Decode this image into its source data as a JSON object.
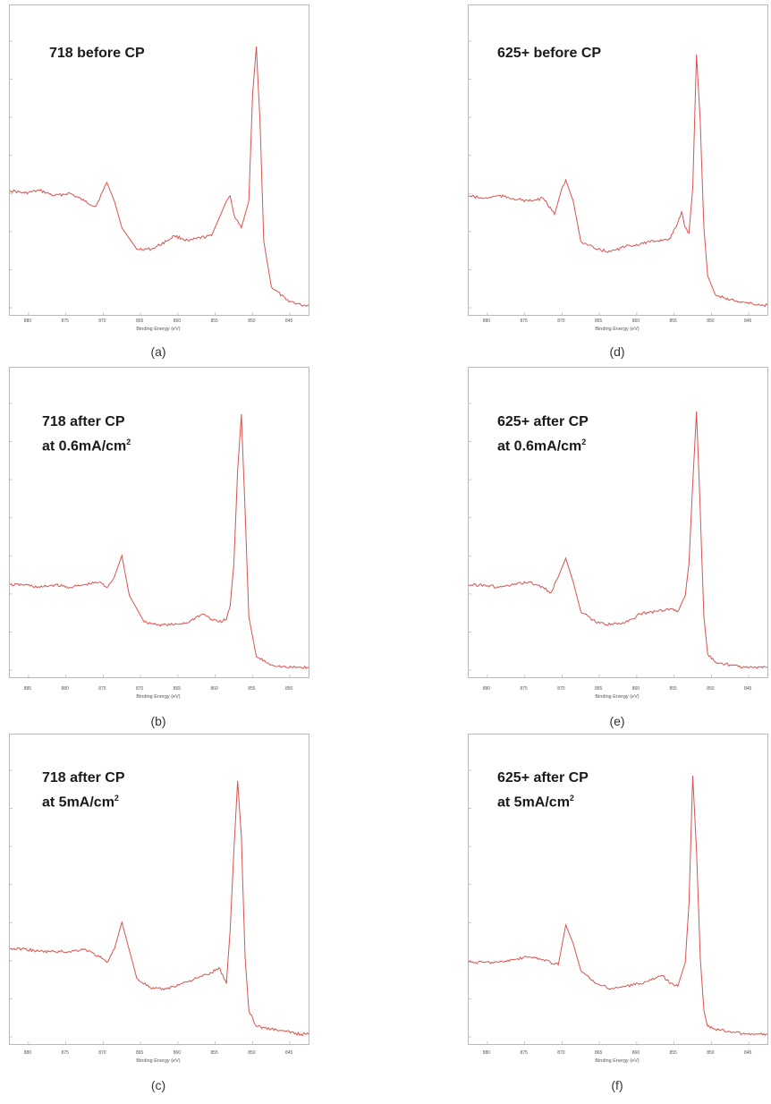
{
  "colors": {
    "trace": "#d9534f",
    "frame": "#b9b9b9"
  },
  "panels": [
    {
      "id": "a",
      "caption": "(a)",
      "title_line1": "718 before CP",
      "title_line2": "",
      "title_unit_sup": "",
      "xlabel": "Binding Energy (eV)",
      "tick_labels": [
        "880",
        "875",
        "870",
        "865",
        "860",
        "855",
        "850",
        "845"
      ],
      "chart_data": {
        "type": "line",
        "xlabel": "Binding Energy (eV)",
        "x_reversed": true,
        "xlim": [
          885,
          845
        ],
        "ylim": [
          0,
          100
        ],
        "x": [
          885,
          883,
          881,
          879,
          877,
          875,
          873.5,
          872.5,
          872,
          871,
          870,
          868,
          866,
          864,
          863,
          862,
          861,
          860,
          858,
          856,
          855.5,
          855,
          854,
          853,
          852.5,
          852,
          851.5,
          851,
          850,
          848,
          846,
          845
        ],
        "y": [
          44,
          43,
          44,
          42,
          43,
          40,
          38,
          44,
          47,
          40,
          30,
          22,
          22,
          25,
          27,
          26,
          25,
          26,
          27,
          40,
          42,
          35,
          30,
          40,
          80,
          98,
          70,
          25,
          8,
          3,
          1,
          1
        ]
      }
    },
    {
      "id": "b",
      "caption": "(b)",
      "title_line1": "718 after CP",
      "title_line2": "at 0.6mA/cm",
      "title_unit_sup": "2",
      "xlabel": "Binding Energy (eV)",
      "tick_labels": [
        "885",
        "880",
        "875",
        "870",
        "865",
        "860",
        "855",
        "850"
      ],
      "chart_data": {
        "type": "line",
        "xlabel": "Binding Energy (eV)",
        "x_reversed": true,
        "xlim": [
          886,
          846
        ],
        "ylim": [
          0,
          100
        ],
        "x": [
          886,
          884,
          882,
          880,
          878,
          876,
          874,
          873,
          872,
          871,
          870,
          868,
          866,
          864,
          862,
          861,
          860,
          859,
          858,
          857,
          856.5,
          856,
          855.5,
          855,
          854.5,
          854,
          853,
          851,
          849,
          847,
          846
        ],
        "y": [
          32,
          32,
          31,
          32,
          31,
          32,
          33,
          31,
          35,
          43,
          28,
          18,
          17,
          17,
          18,
          20,
          21,
          19,
          18,
          19,
          24,
          40,
          75,
          96,
          60,
          20,
          5,
          2,
          1,
          1,
          1
        ]
      }
    },
    {
      "id": "c",
      "caption": "(c)",
      "title_line1": "718 after CP",
      "title_line2": "at 5mA/cm",
      "title_unit_sup": "2",
      "xlabel": "Binding Energy (eV)",
      "tick_labels": [
        "880",
        "875",
        "870",
        "865",
        "860",
        "855",
        "850",
        "845"
      ],
      "chart_data": {
        "type": "line",
        "xlabel": "Binding Energy (eV)",
        "x_reversed": true,
        "xlim": [
          885,
          845
        ],
        "ylim": [
          0,
          100
        ],
        "x": [
          885,
          883,
          881,
          879,
          877,
          875,
          873,
          872,
          871,
          870,
          868,
          866,
          864,
          862,
          860,
          858,
          857,
          856,
          855.5,
          855,
          854.5,
          854,
          853.5,
          853,
          852,
          850,
          848,
          846,
          845
        ],
        "y": [
          33,
          33,
          32,
          32,
          32,
          33,
          30,
          28,
          33,
          43,
          22,
          18,
          18,
          20,
          22,
          24,
          26,
          20,
          40,
          70,
          96,
          75,
          30,
          10,
          4,
          3,
          2,
          1,
          1
        ]
      }
    },
    {
      "id": "d",
      "caption": "(d)",
      "title_line1": "625+ before CP",
      "title_line2": "",
      "title_unit_sup": "",
      "xlabel": "Binding Energy (eV)",
      "tick_labels": [
        "880",
        "875",
        "870",
        "865",
        "860",
        "855",
        "850",
        "845"
      ],
      "chart_data": {
        "type": "line",
        "xlabel": "Binding Energy (eV)",
        "x_reversed": true,
        "xlim": [
          885,
          845
        ],
        "ylim": [
          0,
          100
        ],
        "x": [
          885,
          883,
          881,
          879,
          877,
          875,
          873.5,
          872.5,
          872,
          871,
          870,
          868,
          866,
          864,
          862,
          860,
          858,
          857,
          856.5,
          856,
          855.5,
          855,
          854.5,
          854,
          853.5,
          853,
          852,
          850,
          848,
          846,
          845
        ],
        "y": [
          42,
          41,
          42,
          41,
          40,
          41,
          35,
          45,
          48,
          40,
          25,
          22,
          21,
          23,
          24,
          25,
          26,
          32,
          36,
          30,
          28,
          45,
          95,
          70,
          30,
          12,
          5,
          3,
          2,
          1,
          1
        ]
      }
    },
    {
      "id": "e",
      "caption": "(e)",
      "title_line1": "625+ after CP",
      "title_line2": "at 0.6mA/cm",
      "title_unit_sup": "2",
      "xlabel": "Binding Energy (eV)",
      "tick_labels": [
        "880",
        "875",
        "870",
        "865",
        "860",
        "855",
        "850",
        "845"
      ],
      "chart_data": {
        "type": "line",
        "xlabel": "Binding Energy (eV)",
        "x_reversed": true,
        "xlim": [
          885,
          845
        ],
        "ylim": [
          0,
          100
        ],
        "x": [
          885,
          883,
          881,
          879,
          877,
          875,
          874,
          873,
          872,
          871,
          870,
          868,
          866,
          864,
          862,
          860,
          858,
          857,
          856,
          855.5,
          855,
          854.5,
          854,
          853.5,
          853,
          852,
          850,
          848,
          846,
          845
        ],
        "y": [
          32,
          32,
          31,
          32,
          33,
          31,
          29,
          35,
          42,
          33,
          22,
          18,
          17,
          18,
          21,
          22,
          23,
          22,
          28,
          40,
          70,
          97,
          60,
          20,
          6,
          3,
          2,
          1,
          1,
          1
        ]
      }
    },
    {
      "id": "f",
      "caption": "(f)",
      "title_line1": "625+ after CP",
      "title_line2": "at 5mA/cm",
      "title_unit_sup": "2",
      "xlabel": "Binding Energy (eV)",
      "tick_labels": [
        "880",
        "875",
        "870",
        "865",
        "860",
        "855",
        "850",
        "845"
      ],
      "chart_data": {
        "type": "line",
        "xlabel": "Binding Energy (eV)",
        "x_reversed": true,
        "xlim": [
          885,
          845
        ],
        "ylim": [
          0,
          100
        ],
        "x": [
          885,
          883,
          881,
          879,
          877,
          875,
          873,
          872,
          871,
          870,
          868,
          866,
          864,
          862,
          860,
          859,
          858,
          857,
          856,
          855.5,
          855,
          854.5,
          854,
          853.5,
          853,
          852,
          850,
          848,
          846,
          845
        ],
        "y": [
          28,
          28,
          28,
          29,
          30,
          29,
          27,
          42,
          35,
          25,
          20,
          18,
          19,
          20,
          22,
          23,
          20,
          19,
          28,
          50,
          98,
          70,
          30,
          10,
          4,
          3,
          2,
          1,
          1,
          1
        ]
      }
    }
  ]
}
